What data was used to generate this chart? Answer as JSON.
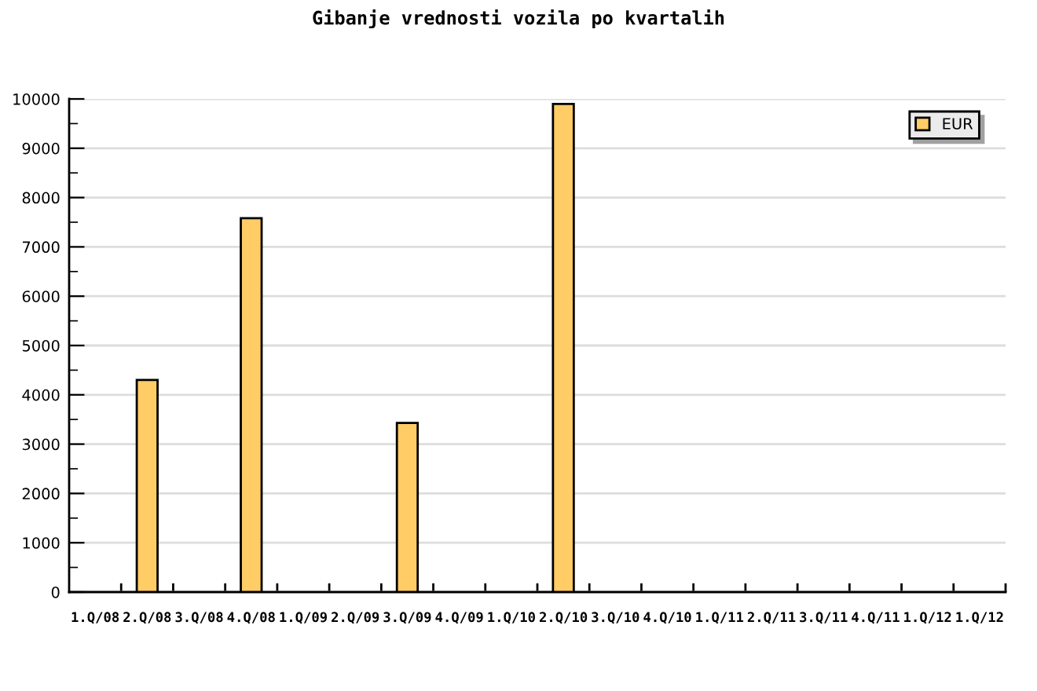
{
  "chart_data": {
    "type": "bar",
    "title": "Gibanje vrednosti vozila po kvartalih",
    "categories": [
      "1.Q/08",
      "2.Q/08",
      "3.Q/08",
      "4.Q/08",
      "1.Q/09",
      "2.Q/09",
      "3.Q/09",
      "4.Q/09",
      "1.Q/10",
      "2.Q/10",
      "3.Q/10",
      "4.Q/10",
      "1.Q/11",
      "2.Q/11",
      "3.Q/11",
      "4.Q/11",
      "1.Q/12",
      "1.Q/12"
    ],
    "series": [
      {
        "name": "EUR",
        "color": "#ffcc66",
        "values": [
          null,
          4300,
          null,
          7580,
          null,
          null,
          3430,
          null,
          null,
          9900,
          null,
          null,
          null,
          null,
          null,
          null,
          null,
          null
        ]
      }
    ],
    "ylim": [
      0,
      10000
    ],
    "yticks": [
      0,
      1000,
      2000,
      3000,
      4000,
      5000,
      6000,
      7000,
      8000,
      9000,
      10000
    ],
    "grid": "y",
    "legend": "top right"
  }
}
